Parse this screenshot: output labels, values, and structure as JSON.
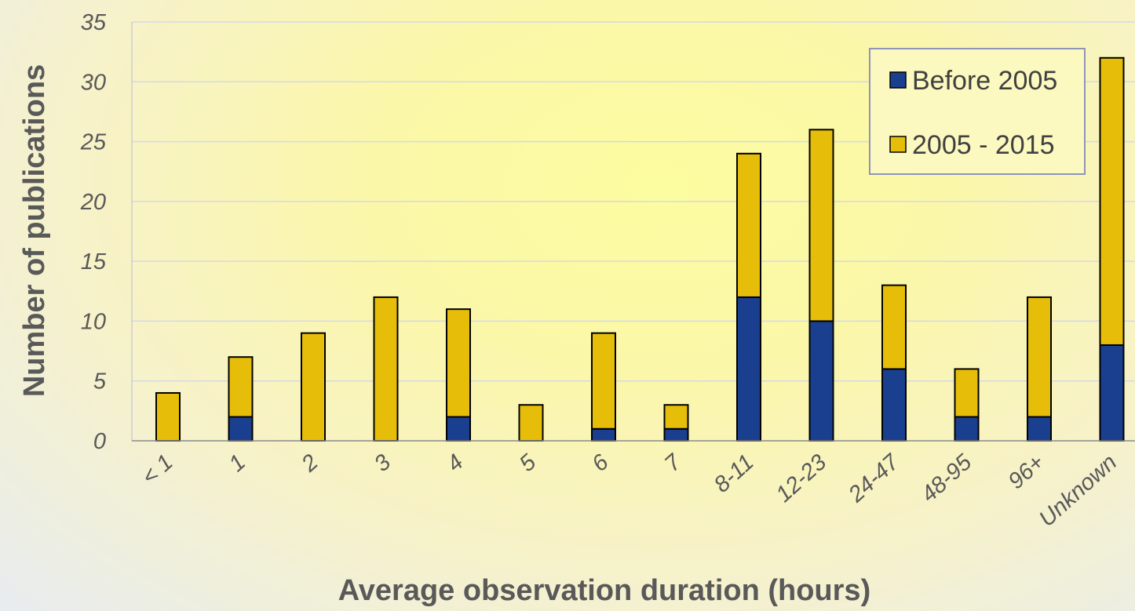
{
  "chart_data": {
    "type": "bar",
    "stacked": true,
    "categories": [
      "< 1",
      "1",
      "2",
      "3",
      "4",
      "5",
      "6",
      "7",
      "8-11",
      "12-23",
      "24-47",
      "48-95",
      "96+",
      "Unknown"
    ],
    "series": [
      {
        "name": "Before 2005",
        "values": [
          0,
          2,
          0,
          0,
          2,
          0,
          1,
          1,
          12,
          10,
          6,
          2,
          2,
          8
        ],
        "color": "#1b3f8f"
      },
      {
        "name": "2005 - 2015",
        "values": [
          4,
          5,
          9,
          12,
          9,
          3,
          8,
          2,
          12,
          16,
          7,
          4,
          10,
          24
        ],
        "color": "#e6be0a"
      }
    ],
    "xlabel": "Average observation duration (hours)",
    "ylabel": "Number of publications",
    "ylim": [
      0,
      35
    ],
    "yticks": [
      "0",
      "5",
      "10",
      "15",
      "20",
      "25",
      "30",
      "35"
    ],
    "grid": true,
    "legend_position": "top-right"
  }
}
